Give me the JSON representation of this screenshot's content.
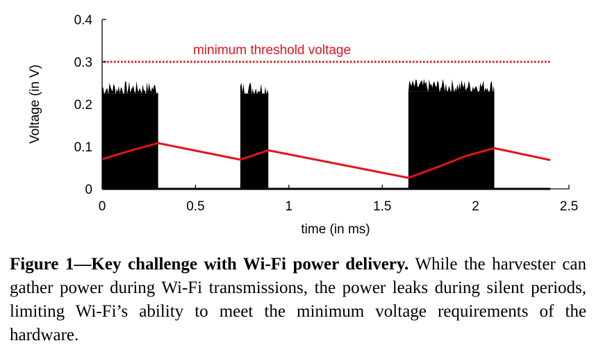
{
  "chart_data": {
    "type": "line",
    "xlabel": "time (in ms)",
    "ylabel": "Voltage (in V)",
    "xlim": [
      0,
      2.5
    ],
    "ylim": [
      0,
      0.4
    ],
    "xticks": [
      0,
      0.5,
      1,
      1.5,
      2,
      2.5
    ],
    "xtick_labels": [
      "0",
      "0.5",
      "1",
      "1.5",
      "2",
      "2.5"
    ],
    "yticks": [
      0,
      0.1,
      0.2,
      0.3,
      0.4
    ],
    "ytick_labels": [
      "0",
      "0.1",
      "0.2",
      "0.3",
      "0.4"
    ],
    "grid": false,
    "threshold": {
      "y": 0.3,
      "label": "minimum threshold voltage",
      "color": "#e0141e",
      "style": "dotted"
    },
    "burst_color": "#000000",
    "burst_intervals": [
      {
        "start": 0.0,
        "end": 0.3,
        "peak": 0.255
      },
      {
        "start": 0.74,
        "end": 0.89,
        "peak": 0.255
      },
      {
        "start": 1.64,
        "end": 2.1,
        "peak": 0.26
      }
    ],
    "series": [
      {
        "color": "#e0141e",
        "x": [
          0.0,
          0.15,
          0.3,
          0.74,
          0.89,
          1.64,
          1.8,
          1.95,
          2.1,
          2.4
        ],
        "y": [
          0.07,
          0.09,
          0.108,
          0.069,
          0.091,
          0.026,
          0.052,
          0.078,
          0.096,
          0.068
        ]
      }
    ]
  },
  "caption": {
    "bold": "Figure 1—Key challenge with Wi-Fi power delivery.",
    "text": " While the harvester can gather power during Wi-Fi transmissions, the power leaks during silent periods, limiting Wi-Fi’s ability to meet the minimum voltage requirements of the hardware."
  }
}
